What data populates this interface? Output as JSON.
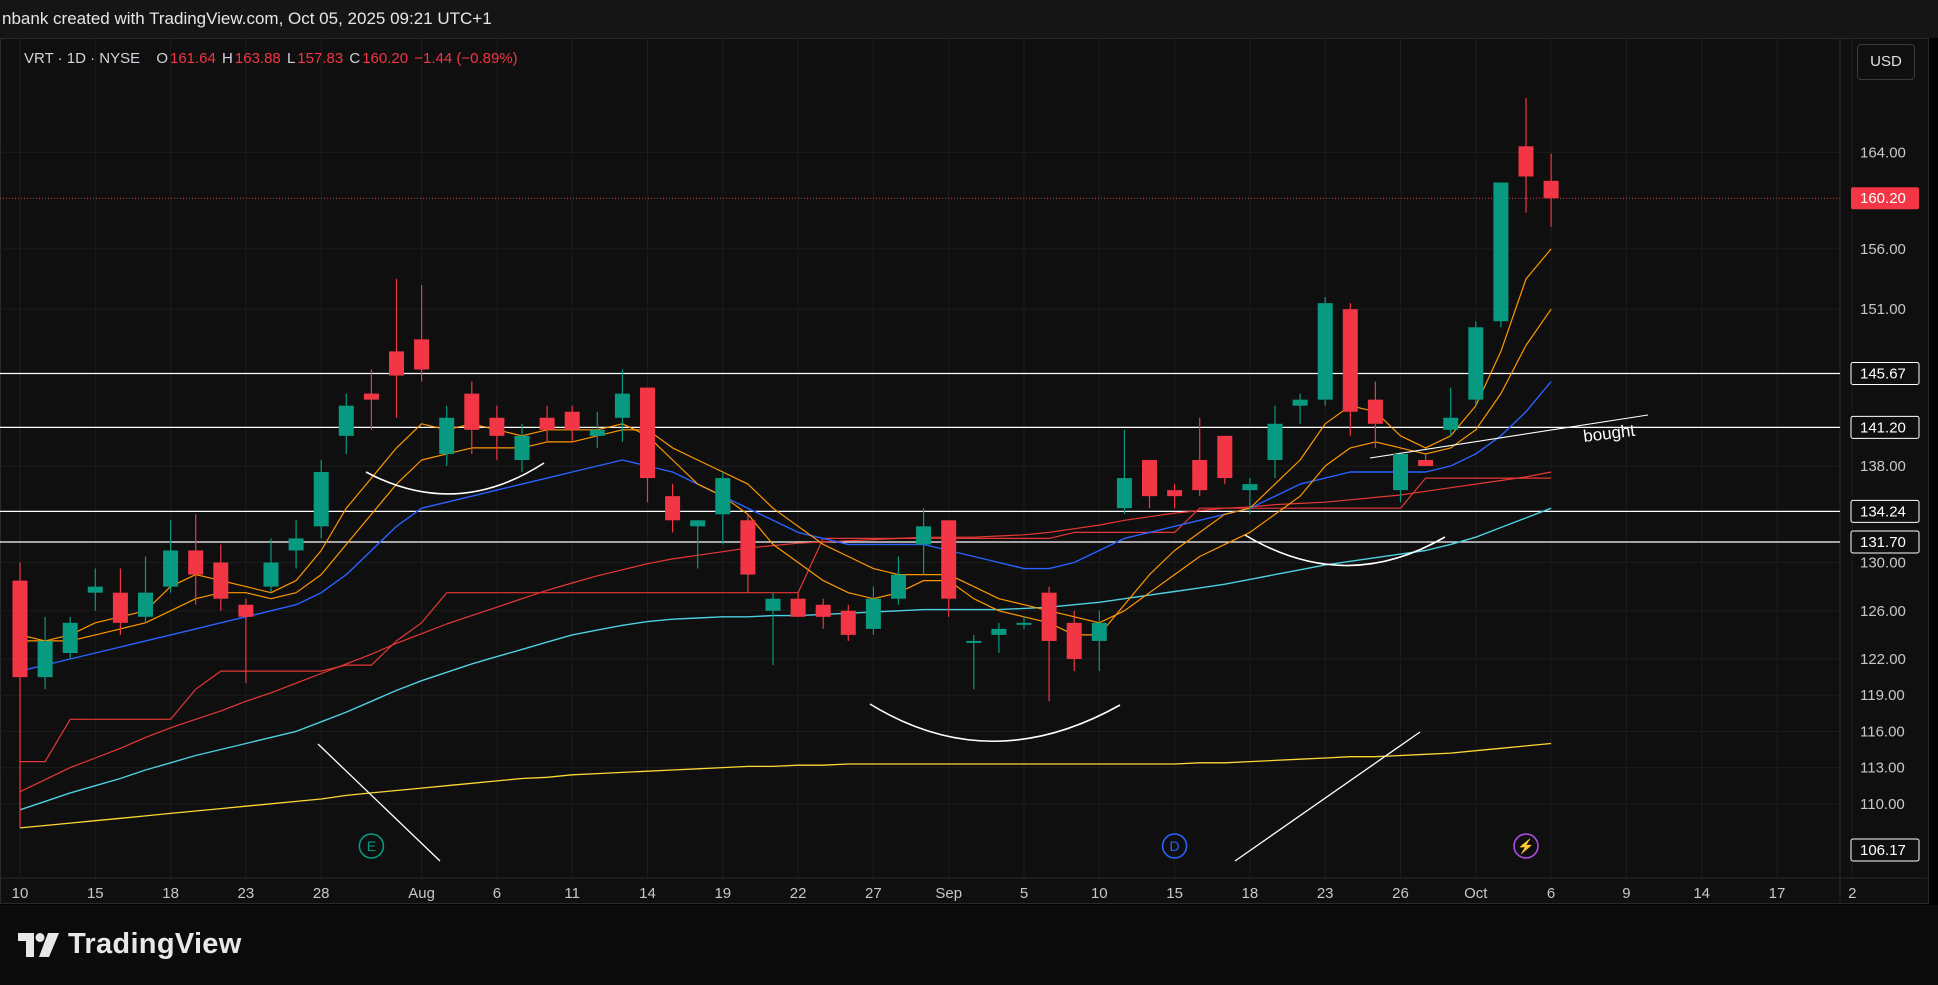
{
  "caption": "nbank created with TradingView.com, Oct 05, 2025 09:21 UTC+1",
  "legend": {
    "symbol": "VRT · 1D · NYSE",
    "o_label": "O",
    "o_value": "161.64",
    "h_label": "H",
    "h_value": "163.88",
    "l_label": "L",
    "l_value": "157.83",
    "c_label": "C",
    "c_value": "160.20",
    "change": "−1.44 (−0.89%)"
  },
  "currency": "USD",
  "brand": "TradingView",
  "colors": {
    "up": "#089981",
    "down": "#f23645",
    "ema_fast": "#ff9800",
    "ema_mid": "#ff9800",
    "ma_blue": "#2962ff",
    "ma_cyan": "#4dd0e1",
    "ma_red": "#e53935",
    "ma_200": "#fdd835",
    "hline": "#ffffff",
    "background": "#0f0f0f"
  },
  "chart_data": {
    "type": "candlestick",
    "symbol": "VRT",
    "interval": "1D",
    "exchange": "NYSE",
    "y_range": [
      106.17,
      169.5
    ],
    "y_ticks": [
      110.0,
      113.0,
      116.0,
      119.0,
      122.0,
      126.0,
      130.0,
      138.0,
      151.0,
      156.0,
      164.0
    ],
    "x_ticks": [
      {
        "label": "10",
        "i": 0
      },
      {
        "label": "15",
        "i": 3
      },
      {
        "label": "18",
        "i": 6
      },
      {
        "label": "23",
        "i": 9
      },
      {
        "label": "28",
        "i": 12
      },
      {
        "label": "Aug",
        "i": 16
      },
      {
        "label": "6",
        "i": 19
      },
      {
        "label": "11",
        "i": 22
      },
      {
        "label": "14",
        "i": 25
      },
      {
        "label": "19",
        "i": 28
      },
      {
        "label": "22",
        "i": 31
      },
      {
        "label": "27",
        "i": 34
      },
      {
        "label": "Sep",
        "i": 37
      },
      {
        "label": "5",
        "i": 40
      },
      {
        "label": "10",
        "i": 43
      },
      {
        "label": "15",
        "i": 46
      },
      {
        "label": "18",
        "i": 49
      },
      {
        "label": "23",
        "i": 52
      },
      {
        "label": "26",
        "i": 55
      },
      {
        "label": "Oct",
        "i": 58
      },
      {
        "label": "6",
        "i": 61
      },
      {
        "label": "9",
        "i": 64
      },
      {
        "label": "14",
        "i": 67
      },
      {
        "label": "17",
        "i": 70
      },
      {
        "label": "2",
        "i": 73
      }
    ],
    "candles": [
      {
        "o": 128.5,
        "h": 130.0,
        "l": 108.0,
        "c": 120.5
      },
      {
        "o": 120.5,
        "h": 125.5,
        "l": 119.5,
        "c": 123.5
      },
      {
        "o": 122.5,
        "h": 125.5,
        "l": 122.0,
        "c": 125.0
      },
      {
        "o": 127.5,
        "h": 129.5,
        "l": 126.0,
        "c": 128.0
      },
      {
        "o": 127.5,
        "h": 129.5,
        "l": 124.0,
        "c": 125.0
      },
      {
        "o": 125.5,
        "h": 130.5,
        "l": 125.0,
        "c": 127.5
      },
      {
        "o": 128.0,
        "h": 133.5,
        "l": 127.5,
        "c": 131.0
      },
      {
        "o": 131.0,
        "h": 134.0,
        "l": 126.5,
        "c": 129.0
      },
      {
        "o": 130.0,
        "h": 131.5,
        "l": 126.0,
        "c": 127.0
      },
      {
        "o": 126.5,
        "h": 127.0,
        "l": 120.0,
        "c": 125.5
      },
      {
        "o": 128.0,
        "h": 132.0,
        "l": 127.5,
        "c": 130.0
      },
      {
        "o": 131.0,
        "h": 133.5,
        "l": 129.5,
        "c": 132.0
      },
      {
        "o": 133.0,
        "h": 138.5,
        "l": 132.0,
        "c": 137.5
      },
      {
        "o": 140.5,
        "h": 144.0,
        "l": 139.0,
        "c": 143.0
      },
      {
        "o": 144.0,
        "h": 146.0,
        "l": 141.0,
        "c": 143.5
      },
      {
        "o": 147.5,
        "h": 153.5,
        "l": 142.0,
        "c": 145.5
      },
      {
        "o": 148.5,
        "h": 153.0,
        "l": 145.0,
        "c": 146.0
      },
      {
        "o": 139.0,
        "h": 143.0,
        "l": 138.0,
        "c": 142.0
      },
      {
        "o": 144.0,
        "h": 145.0,
        "l": 139.0,
        "c": 141.0
      },
      {
        "o": 142.0,
        "h": 143.0,
        "l": 138.5,
        "c": 140.5
      },
      {
        "o": 138.5,
        "h": 141.5,
        "l": 137.5,
        "c": 140.5
      },
      {
        "o": 142.0,
        "h": 143.0,
        "l": 140.0,
        "c": 141.0
      },
      {
        "o": 142.5,
        "h": 143.0,
        "l": 140.0,
        "c": 141.0
      },
      {
        "o": 140.5,
        "h": 142.5,
        "l": 139.5,
        "c": 141.0
      },
      {
        "o": 142.0,
        "h": 146.0,
        "l": 140.0,
        "c": 144.0
      },
      {
        "o": 144.5,
        "h": 144.5,
        "l": 135.0,
        "c": 137.0
      },
      {
        "o": 135.5,
        "h": 136.5,
        "l": 132.5,
        "c": 133.5
      },
      {
        "o": 133.0,
        "h": 133.5,
        "l": 129.5,
        "c": 133.5
      },
      {
        "o": 134.0,
        "h": 137.5,
        "l": 131.5,
        "c": 137.0
      },
      {
        "o": 133.5,
        "h": 134.0,
        "l": 127.5,
        "c": 129.0
      },
      {
        "o": 126.0,
        "h": 127.5,
        "l": 121.5,
        "c": 127.0
      },
      {
        "o": 127.0,
        "h": 127.5,
        "l": 125.5,
        "c": 125.5
      },
      {
        "o": 126.5,
        "h": 127.0,
        "l": 124.5,
        "c": 125.5
      },
      {
        "o": 126.0,
        "h": 126.5,
        "l": 123.5,
        "c": 124.0
      },
      {
        "o": 124.5,
        "h": 128.0,
        "l": 124.0,
        "c": 127.0
      },
      {
        "o": 127.0,
        "h": 130.5,
        "l": 126.5,
        "c": 129.0
      },
      {
        "o": 131.5,
        "h": 134.5,
        "l": 129.0,
        "c": 133.0
      },
      {
        "o": 133.5,
        "h": 133.5,
        "l": 125.5,
        "c": 127.0
      },
      {
        "o": 123.5,
        "h": 124.0,
        "l": 119.5,
        "c": 123.5
      },
      {
        "o": 124.0,
        "h": 125.0,
        "l": 122.5,
        "c": 124.5
      },
      {
        "o": 125.0,
        "h": 125.5,
        "l": 124.5,
        "c": 125.0
      },
      {
        "o": 127.5,
        "h": 128.0,
        "l": 118.5,
        "c": 123.5
      },
      {
        "o": 125.0,
        "h": 126.0,
        "l": 121.0,
        "c": 122.0
      },
      {
        "o": 123.5,
        "h": 126.0,
        "l": 121.0,
        "c": 125.0
      },
      {
        "o": 134.5,
        "h": 141.0,
        "l": 134.0,
        "c": 137.0
      },
      {
        "o": 138.5,
        "h": 138.5,
        "l": 134.5,
        "c": 135.5
      },
      {
        "o": 136.0,
        "h": 136.5,
        "l": 134.5,
        "c": 135.5
      },
      {
        "o": 138.5,
        "h": 142.0,
        "l": 135.5,
        "c": 136.0
      },
      {
        "o": 140.5,
        "h": 140.5,
        "l": 136.5,
        "c": 137.0
      },
      {
        "o": 136.0,
        "h": 137.0,
        "l": 134.0,
        "c": 136.5
      },
      {
        "o": 138.5,
        "h": 143.0,
        "l": 137.0,
        "c": 141.5
      },
      {
        "o": 143.0,
        "h": 144.0,
        "l": 141.5,
        "c": 143.5
      },
      {
        "o": 143.5,
        "h": 152.0,
        "l": 143.0,
        "c": 151.5
      },
      {
        "o": 151.0,
        "h": 151.5,
        "l": 140.5,
        "c": 142.5
      },
      {
        "o": 143.5,
        "h": 145.0,
        "l": 139.5,
        "c": 141.5
      },
      {
        "o": 136.0,
        "h": 139.0,
        "l": 135.0,
        "c": 139.0
      },
      {
        "o": 138.5,
        "h": 139.0,
        "l": 138.0,
        "c": 138.0
      },
      {
        "o": 141.0,
        "h": 144.5,
        "l": 140.5,
        "c": 142.0
      },
      {
        "o": 143.5,
        "h": 150.0,
        "l": 143.0,
        "c": 149.5
      },
      {
        "o": 150.0,
        "h": 161.0,
        "l": 149.5,
        "c": 161.5
      },
      {
        "o": 164.5,
        "h": 168.5,
        "l": 159.0,
        "c": 162.0
      },
      {
        "o": 161.64,
        "h": 163.88,
        "l": 157.83,
        "c": 160.2
      }
    ],
    "ema_fast": {
      "i0": 0,
      "values": [
        124.0,
        123.5,
        124.0,
        125.0,
        125.5,
        126.0,
        128.0,
        129.0,
        128.5,
        128.0,
        127.5,
        128.5,
        131.0,
        134.5,
        137.0,
        139.5,
        141.5,
        141.0,
        141.5,
        141.0,
        140.5,
        141.0,
        141.0,
        141.0,
        141.5,
        140.5,
        138.5,
        136.5,
        135.5,
        134.0,
        131.5,
        130.0,
        128.5,
        127.5,
        127.0,
        127.5,
        128.5,
        128.5,
        127.0,
        126.0,
        125.5,
        125.0,
        124.0,
        124.0,
        126.5,
        129.0,
        131.0,
        132.5,
        134.0,
        134.5,
        136.5,
        138.5,
        141.5,
        143.0,
        142.5,
        140.5,
        139.5,
        140.5,
        143.0,
        147.5,
        153.5,
        156.0
      ]
    },
    "ema_mid": {
      "i0": 0,
      "values": [
        123.5,
        123.5,
        123.5,
        124.0,
        124.5,
        125.0,
        126.0,
        127.0,
        127.5,
        127.5,
        127.0,
        127.5,
        129.0,
        131.5,
        134.0,
        136.5,
        138.5,
        139.0,
        139.5,
        139.5,
        139.5,
        140.0,
        140.0,
        140.5,
        141.0,
        141.0,
        139.5,
        138.5,
        137.5,
        136.5,
        134.5,
        133.0,
        131.5,
        130.5,
        129.5,
        129.0,
        129.0,
        129.0,
        128.0,
        127.0,
        126.5,
        126.0,
        125.5,
        125.0,
        126.0,
        127.5,
        129.0,
        130.5,
        131.5,
        132.5,
        134.0,
        135.5,
        138.0,
        139.5,
        140.0,
        139.5,
        139.0,
        139.5,
        141.0,
        144.0,
        148.0,
        151.0
      ]
    },
    "ma_blue": {
      "i0": 0,
      "values": [
        121.0,
        121.5,
        122.0,
        122.5,
        123.0,
        123.5,
        124.0,
        124.5,
        125.0,
        125.5,
        126.0,
        126.5,
        127.5,
        129.0,
        131.0,
        133.0,
        134.5,
        135.0,
        135.5,
        136.0,
        136.5,
        137.0,
        137.5,
        138.0,
        138.5,
        138.0,
        137.5,
        136.5,
        135.5,
        134.5,
        133.5,
        132.5,
        132.0,
        131.5,
        131.5,
        131.5,
        131.5,
        131.0,
        130.5,
        130.0,
        129.5,
        129.5,
        130.0,
        131.0,
        132.0,
        132.5,
        133.0,
        133.5,
        134.0,
        134.5,
        135.5,
        136.5,
        137.0,
        137.5,
        137.5,
        137.5,
        137.5,
        138.0,
        139.0,
        140.5,
        142.5,
        145.0
      ]
    },
    "ma_red_step": {
      "i0": 0,
      "values": [
        113.5,
        113.5,
        117.0,
        117.0,
        117.0,
        117.0,
        117.0,
        119.5,
        121.0,
        121.0,
        121.0,
        121.0,
        121.0,
        121.5,
        121.5,
        123.5,
        125.0,
        127.5,
        127.5,
        127.5,
        127.5,
        127.5,
        127.5,
        127.5,
        127.5,
        127.5,
        127.5,
        127.5,
        127.5,
        127.5,
        127.5,
        127.5,
        132.0,
        132.0,
        132.0,
        132.0,
        132.0,
        132.0,
        132.0,
        132.0,
        132.0,
        132.0,
        132.5,
        132.5,
        132.5,
        132.5,
        132.5,
        134.5,
        134.5,
        134.5,
        134.5,
        134.5,
        134.5,
        134.5,
        134.5,
        134.5,
        137.0,
        137.0,
        137.0,
        137.0,
        137.0,
        137.0
      ]
    },
    "ma_red_smooth": {
      "i0": 0,
      "values": [
        111.0,
        112.0,
        113.0,
        113.8,
        114.6,
        115.5,
        116.3,
        117.0,
        117.7,
        118.5,
        119.2,
        120.0,
        120.8,
        121.6,
        122.4,
        123.3,
        124.1,
        124.9,
        125.6,
        126.3,
        127.0,
        127.7,
        128.3,
        128.9,
        129.4,
        129.9,
        130.3,
        130.6,
        130.9,
        131.2,
        131.4,
        131.6,
        131.7,
        131.8,
        131.9,
        132.0,
        132.1,
        132.1,
        132.1,
        132.2,
        132.3,
        132.5,
        132.8,
        133.1,
        133.5,
        133.8,
        134.1,
        134.3,
        134.5,
        134.6,
        134.8,
        134.9,
        135.0,
        135.2,
        135.4,
        135.6,
        135.9,
        136.2,
        136.5,
        136.8,
        137.1,
        137.5
      ]
    },
    "ma_cyan": {
      "i0": 0,
      "values": [
        109.5,
        110.2,
        110.9,
        111.5,
        112.1,
        112.8,
        113.4,
        114.0,
        114.5,
        115.0,
        115.5,
        116.0,
        116.8,
        117.6,
        118.5,
        119.4,
        120.2,
        120.9,
        121.6,
        122.2,
        122.8,
        123.4,
        124.0,
        124.4,
        124.8,
        125.1,
        125.3,
        125.4,
        125.5,
        125.5,
        125.6,
        125.6,
        125.7,
        125.8,
        125.9,
        126.0,
        126.1,
        126.1,
        126.1,
        126.1,
        126.2,
        126.3,
        126.5,
        126.7,
        127.0,
        127.3,
        127.6,
        127.9,
        128.2,
        128.6,
        129.0,
        129.4,
        129.8,
        130.1,
        130.4,
        130.7,
        131.0,
        131.5,
        132.1,
        132.9,
        133.7,
        134.5
      ]
    },
    "ma_200": {
      "i0": 0,
      "values": [
        108.0,
        108.2,
        108.4,
        108.6,
        108.8,
        109.0,
        109.2,
        109.4,
        109.6,
        109.8,
        110.0,
        110.2,
        110.4,
        110.7,
        110.9,
        111.1,
        111.3,
        111.5,
        111.7,
        111.9,
        112.1,
        112.2,
        112.4,
        112.5,
        112.6,
        112.7,
        112.8,
        112.9,
        113.0,
        113.1,
        113.1,
        113.2,
        113.2,
        113.3,
        113.3,
        113.3,
        113.3,
        113.3,
        113.3,
        113.3,
        113.3,
        113.3,
        113.3,
        113.3,
        113.3,
        113.3,
        113.3,
        113.4,
        113.4,
        113.5,
        113.6,
        113.7,
        113.8,
        113.9,
        113.9,
        114.0,
        114.1,
        114.2,
        114.4,
        114.6,
        114.8,
        115.0
      ]
    },
    "horizontal_levels": [
      145.67,
      141.2,
      134.24,
      131.7
    ],
    "last_price": 160.2,
    "annotations": [
      "bought"
    ],
    "event_markers": [
      {
        "label": "E",
        "i": 14
      },
      {
        "label": "D",
        "i": 46
      },
      {
        "label": "⚡",
        "i": 60
      }
    ]
  }
}
